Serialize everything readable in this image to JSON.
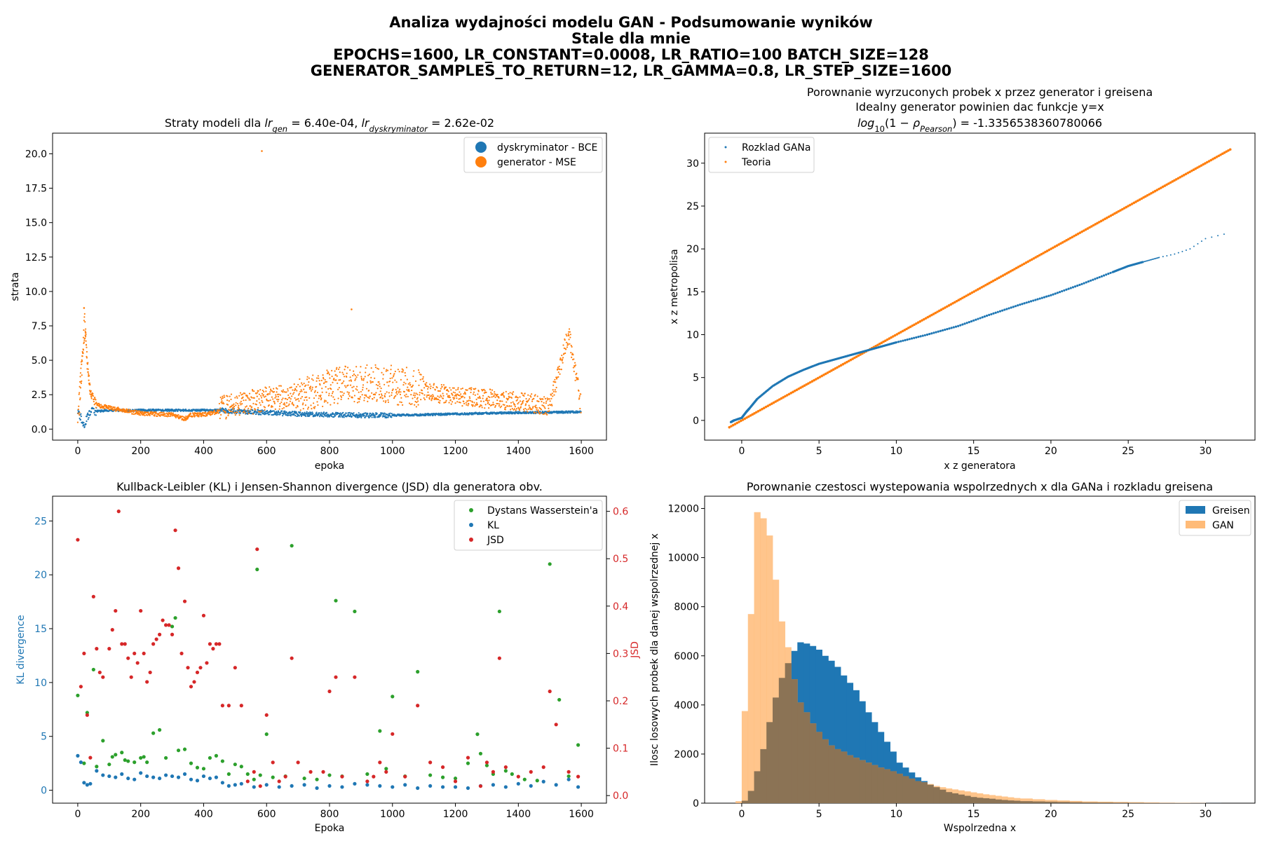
{
  "figure": {
    "suptitle_lines": [
      "Analiza wydajności modelu GAN - Podsumowanie wyników",
      "Stale dla mnie",
      "EPOCHS=1600, LR_CONSTANT=0.0008, LR_RATIO=100 BATCH_SIZE=128",
      "GENERATOR_SAMPLES_TO_RETURN=12, LR_GAMMA=0.8, LR_STEP_SIZE=1600"
    ],
    "colors": {
      "blue": "#1f77b4",
      "orange": "#ff7f0e",
      "green": "#2ca02c",
      "red": "#d62728"
    }
  },
  "chart_data": [
    {
      "id": "losses",
      "type": "scatter",
      "title": "Straty modeli dla lr_gen = 6.40e-04, lr_dyskryminator = 2.62e-02",
      "title_parts": {
        "prefix": "Straty modeli dla ",
        "lr": "lr",
        "gen_sub": "gen",
        "gen_value": " = 6.40e-04, ",
        "disc_sub": "dyskryminator",
        "disc_value": " = 2.62e-02"
      },
      "xlabel": "epoka",
      "ylabel": "strata",
      "xlim": [
        -80,
        1680
      ],
      "ylim": [
        -0.8,
        21.5
      ],
      "xticks": [
        0,
        200,
        400,
        600,
        800,
        1000,
        1200,
        1400,
        1600
      ],
      "yticks": [
        "0.0",
        "2.5",
        "5.0",
        "7.5",
        "10.0",
        "12.5",
        "15.0",
        "17.5",
        "20.0"
      ],
      "legend": {
        "placement": "upper right",
        "entries": [
          "dyskryminator - BCE",
          "generator - MSE"
        ]
      },
      "series": [
        {
          "name": "dyskryminator - BCE",
          "color": "#1f77b4",
          "x": [
            0,
            20,
            40,
            60,
            100,
            200,
            300,
            400,
            450,
            500,
            600,
            700,
            800,
            900,
            1000,
            1100,
            1200,
            1300,
            1400,
            1500,
            1599
          ],
          "y": [
            1.3,
            0.3,
            1.3,
            1.3,
            1.35,
            1.37,
            1.37,
            1.37,
            1.37,
            1.3,
            1.2,
            1.1,
            1.05,
            1.0,
            1.0,
            1.05,
            1.1,
            1.15,
            1.2,
            1.22,
            1.25
          ]
        },
        {
          "name": "generator - MSE",
          "color": "#ff7f0e",
          "x": [
            0,
            10,
            20,
            25,
            30,
            40,
            60,
            100,
            150,
            200,
            300,
            340,
            360,
            400,
            460,
            500,
            585,
            600,
            700,
            800,
            870,
            900,
            1000,
            1100,
            1200,
            1300,
            1400,
            1500,
            1560,
            1600
          ],
          "y": [
            0.7,
            4.5,
            8.8,
            7.0,
            5.0,
            2.5,
            1.7,
            1.5,
            1.3,
            1.1,
            1.0,
            0.7,
            1.0,
            1.0,
            1.3,
            1.5,
            20.2,
            1.9,
            2.2,
            2.6,
            8.7,
            2.9,
            2.8,
            2.5,
            2.2,
            2.0,
            1.8,
            1.5,
            6.8,
            1.4
          ]
        }
      ]
    },
    {
      "id": "qq",
      "type": "scatter",
      "title_lines": [
        "Porownanie wyrzuconych probek x przez generator i greisena",
        "Idealny generator powinien dac funkcje y=x",
        "log10(1 − ρPearson) = -1.3356538360780066"
      ],
      "title_formula": {
        "log": "log",
        "log_sub": "10",
        "mid": "(1 − ",
        "rho": "ρ",
        "rho_sub": "Pearson",
        "value": ") = -1.3356538360780066"
      },
      "xlabel": "x z generatora",
      "ylabel": "x z metropolisa",
      "xlim": [
        -2.4,
        33.2
      ],
      "ylim": [
        -2.3,
        33.5
      ],
      "xticks": [
        0,
        5,
        10,
        15,
        20,
        25,
        30
      ],
      "yticks": [
        0,
        5,
        10,
        15,
        20,
        25,
        30
      ],
      "legend": {
        "placement": "upper left",
        "entries": [
          "Rozklad GANa",
          "Teoria"
        ]
      },
      "series": [
        {
          "name": "Rozklad GANa",
          "color": "#1f77b4",
          "x": [
            -0.7,
            -0.5,
            0,
            0.3,
            0.5,
            1,
            2,
            3,
            4,
            5,
            6,
            7,
            8,
            9,
            10,
            12,
            14,
            16,
            18,
            20,
            22,
            24,
            25,
            26,
            27,
            28,
            29,
            30,
            31.6
          ],
          "y": [
            -0.2,
            0,
            0.3,
            1.0,
            1.4,
            2.5,
            4.0,
            5.1,
            5.9,
            6.6,
            7.1,
            7.6,
            8.1,
            8.6,
            9.1,
            10.0,
            11.0,
            12.3,
            13.5,
            14.6,
            15.9,
            17.3,
            18.0,
            18.5,
            19.0,
            19.4,
            20.0,
            21.2,
            21.9
          ]
        },
        {
          "name": "Teoria",
          "color": "#ff7f0e",
          "x": [
            -0.8,
            31.6
          ],
          "y": [
            -0.8,
            31.6
          ]
        }
      ]
    },
    {
      "id": "divergence",
      "type": "scatter",
      "title": "Kullback-Leibler (KL) i Jensen-Shannon divergence (JSD) dla generatora obv.",
      "xlabel": "Epoka",
      "ylabel": "KL divergence",
      "ylabel_right": "JSD",
      "xlim": [
        -80,
        1680
      ],
      "ylim": [
        -1.2,
        27.3
      ],
      "ylim_right": [
        -0.016,
        0.632
      ],
      "xticks": [
        0,
        200,
        400,
        600,
        800,
        1000,
        1200,
        1400,
        1600
      ],
      "yticks": [
        0,
        5,
        10,
        15,
        20,
        25
      ],
      "yticks_right": [
        "0.0",
        "0.1",
        "0.2",
        "0.3",
        "0.4",
        "0.5",
        "0.6"
      ],
      "legend": {
        "placement": "upper right",
        "entries": [
          "Dystans Wasserstein'a",
          "KL",
          "JSD"
        ]
      },
      "series": [
        {
          "name": "Dystans Wasserstein'a",
          "color": "#2ca02c",
          "axis": "left",
          "x": [
            0,
            20,
            30,
            50,
            60,
            80,
            100,
            110,
            120,
            140,
            150,
            160,
            180,
            200,
            210,
            220,
            240,
            260,
            280,
            300,
            310,
            320,
            340,
            360,
            380,
            400,
            420,
            440,
            460,
            480,
            500,
            520,
            540,
            560,
            570,
            580,
            600,
            620,
            660,
            680,
            720,
            760,
            800,
            820,
            840,
            880,
            920,
            960,
            980,
            1000,
            1040,
            1080,
            1120,
            1160,
            1200,
            1240,
            1270,
            1280,
            1300,
            1320,
            1340,
            1360,
            1380,
            1420,
            1460,
            1500,
            1530,
            1560,
            1590
          ],
          "y": [
            8.8,
            2.5,
            7.2,
            11.2,
            2.2,
            4.6,
            2.4,
            3.1,
            3.3,
            3.5,
            2.8,
            2.7,
            2.6,
            3.0,
            3.1,
            2.6,
            5.3,
            5.6,
            3.0,
            15.2,
            16.0,
            3.7,
            3.8,
            2.5,
            2.1,
            2.0,
            3.0,
            3.2,
            2.7,
            1.5,
            2.4,
            2.2,
            1.5,
            1.0,
            20.5,
            1.4,
            5.2,
            1.2,
            1.3,
            22.7,
            1.1,
            1.0,
            1.4,
            17.6,
            1.3,
            16.6,
            1.5,
            5.5,
            2.0,
            8.7,
            1.3,
            11.0,
            1.4,
            1.2,
            1.1,
            2.5,
            5.2,
            3.4,
            2.3,
            1.5,
            16.6,
            1.8,
            1.5,
            1.0,
            0.9,
            21.0,
            8.4,
            1.3,
            4.2
          ]
        },
        {
          "name": "KL",
          "color": "#1f77b4",
          "axis": "left",
          "x": [
            0,
            10,
            20,
            30,
            40,
            60,
            80,
            100,
            120,
            140,
            160,
            180,
            200,
            220,
            240,
            260,
            280,
            300,
            320,
            340,
            360,
            380,
            400,
            420,
            440,
            460,
            480,
            500,
            520,
            560,
            600,
            640,
            680,
            720,
            760,
            800,
            840,
            880,
            920,
            960,
            1000,
            1040,
            1080,
            1120,
            1160,
            1200,
            1240,
            1280,
            1320,
            1360,
            1400,
            1440,
            1480,
            1520,
            1560,
            1590
          ],
          "y": [
            3.2,
            2.6,
            0.7,
            0.5,
            0.6,
            1.8,
            1.4,
            1.3,
            1.2,
            1.5,
            1.1,
            1.0,
            1.6,
            1.3,
            1.2,
            1.1,
            1.4,
            1.3,
            1.2,
            1.5,
            1.0,
            0.9,
            1.3,
            1.1,
            1.2,
            0.7,
            0.4,
            0.5,
            0.6,
            0.3,
            0.5,
            0.3,
            0.4,
            0.5,
            0.2,
            0.4,
            0.3,
            0.6,
            0.5,
            0.4,
            0.3,
            0.5,
            0.2,
            0.4,
            0.3,
            0.3,
            0.2,
            0.4,
            0.5,
            0.3,
            0.6,
            0.4,
            0.8,
            0.5,
            1.0,
            0.3
          ]
        },
        {
          "name": "JSD",
          "color": "#d62728",
          "axis": "right",
          "x": [
            0,
            10,
            20,
            30,
            40,
            50,
            60,
            70,
            80,
            100,
            110,
            120,
            130,
            140,
            150,
            160,
            170,
            180,
            190,
            200,
            210,
            220,
            230,
            240,
            250,
            260,
            270,
            280,
            290,
            300,
            310,
            320,
            330,
            340,
            350,
            360,
            370,
            380,
            390,
            400,
            410,
            420,
            430,
            440,
            450,
            460,
            480,
            500,
            520,
            540,
            560,
            570,
            580,
            600,
            620,
            640,
            660,
            680,
            700,
            740,
            780,
            800,
            820,
            840,
            880,
            920,
            940,
            960,
            980,
            1000,
            1040,
            1080,
            1120,
            1160,
            1200,
            1240,
            1280,
            1300,
            1320,
            1340,
            1360,
            1400,
            1440,
            1480,
            1500,
            1520,
            1560,
            1590
          ],
          "y": [
            0.54,
            0.23,
            0.3,
            0.17,
            0.08,
            0.42,
            0.31,
            0.26,
            0.25,
            0.31,
            0.35,
            0.39,
            0.6,
            0.32,
            0.32,
            0.29,
            0.25,
            0.3,
            0.28,
            0.39,
            0.3,
            0.24,
            0.26,
            0.32,
            0.33,
            0.34,
            0.37,
            0.36,
            0.36,
            0.34,
            0.56,
            0.48,
            0.3,
            0.41,
            0.27,
            0.23,
            0.24,
            0.26,
            0.27,
            0.38,
            0.28,
            0.32,
            0.31,
            0.32,
            0.32,
            0.19,
            0.19,
            0.27,
            0.19,
            0.03,
            0.05,
            0.52,
            0.02,
            0.17,
            0.07,
            0.03,
            0.04,
            0.29,
            0.07,
            0.05,
            0.05,
            0.22,
            0.25,
            0.04,
            0.25,
            0.03,
            0.04,
            0.07,
            0.05,
            0.13,
            0.04,
            0.19,
            0.07,
            0.06,
            0.03,
            0.08,
            0.02,
            0.07,
            0.05,
            0.29,
            0.06,
            0.04,
            0.05,
            0.06,
            0.22,
            0.15,
            0.05,
            0.04
          ]
        }
      ]
    },
    {
      "id": "histogram",
      "type": "bar",
      "title": "Porownanie czestosci wystepowania wspolrzednych x dla GANa i rozkladu greisena",
      "xlabel": "Wspolrzedna x",
      "ylabel": "Ilosc losowych probek dla danej wspolrzednej x",
      "xlim": [
        -2.4,
        33.2
      ],
      "ylim": [
        0,
        12500
      ],
      "xticks": [
        0,
        5,
        10,
        15,
        20,
        25,
        30
      ],
      "yticks": [
        0,
        2000,
        4000,
        6000,
        8000,
        10000,
        12000
      ],
      "legend": {
        "placement": "upper right",
        "entries": [
          "Greisen",
          "GAN"
        ]
      },
      "bin_width": 0.4,
      "series": [
        {
          "name": "Greisen",
          "color": "#1f77b4",
          "x": [
            0.0,
            0.4,
            0.8,
            1.2,
            1.6,
            2.0,
            2.4,
            2.8,
            3.2,
            3.6,
            4.0,
            4.4,
            4.8,
            5.2,
            5.6,
            6.0,
            6.4,
            6.8,
            7.2,
            7.6,
            8.0,
            8.4,
            8.8,
            9.2,
            9.6,
            10.0,
            10.4,
            10.8,
            11.2,
            11.6,
            12.0,
            12.4,
            12.8,
            13.2,
            13.6,
            14.0,
            14.4,
            14.8,
            15.2,
            15.6,
            16.0,
            16.4,
            16.8,
            17.2,
            17.6,
            18.0,
            18.8,
            19.6,
            20.4,
            21.2,
            22.0,
            23.0,
            24.0,
            25.0,
            26.0,
            27.0,
            28.0,
            29.0,
            30.0
          ],
          "values": [
            100,
            500,
            1300,
            2200,
            3300,
            4300,
            5100,
            5700,
            6200,
            6550,
            6500,
            6400,
            6250,
            6000,
            5800,
            5550,
            5200,
            4900,
            4600,
            4150,
            3700,
            3300,
            2900,
            2500,
            2100,
            1650,
            1450,
            1250,
            1050,
            900,
            750,
            650,
            550,
            450,
            400,
            350,
            300,
            250,
            220,
            200,
            180,
            150,
            130,
            110,
            100,
            80,
            70,
            60,
            50,
            40,
            30,
            25,
            20,
            15,
            10,
            8,
            5,
            3,
            2
          ]
        },
        {
          "name": "GAN",
          "color": "#ffbb78",
          "x": [
            -0.4,
            0.0,
            0.4,
            0.8,
            1.2,
            1.6,
            2.0,
            2.4,
            2.8,
            3.2,
            3.6,
            4.0,
            4.4,
            4.8,
            5.2,
            5.6,
            6.0,
            6.4,
            6.8,
            7.2,
            7.6,
            8.0,
            8.4,
            8.8,
            9.2,
            9.6,
            10.0,
            10.4,
            10.8,
            11.2,
            11.6,
            12.0,
            12.4,
            12.8,
            13.2,
            13.6,
            14.0,
            14.4,
            14.8,
            15.2,
            15.6,
            16.0,
            16.4,
            16.8,
            17.2,
            17.6,
            18.0,
            18.8,
            19.6,
            20.4,
            21.2,
            22.0,
            23.0,
            24.0,
            25.0,
            26.0,
            27.0,
            28.0,
            29.0
          ],
          "values": [
            80,
            3750,
            7700,
            11850,
            11600,
            10900,
            9100,
            7400,
            6350,
            5050,
            4100,
            3700,
            3250,
            2900,
            2600,
            2350,
            2200,
            2100,
            1950,
            1850,
            1750,
            1650,
            1550,
            1450,
            1380,
            1300,
            1200,
            1100,
            1000,
            900,
            850,
            780,
            700,
            650,
            600,
            560,
            520,
            480,
            440,
            400,
            360,
            330,
            300,
            270,
            240,
            210,
            190,
            160,
            130,
            110,
            90,
            70,
            60,
            50,
            40,
            30,
            20,
            15,
            10
          ]
        }
      ]
    }
  ]
}
